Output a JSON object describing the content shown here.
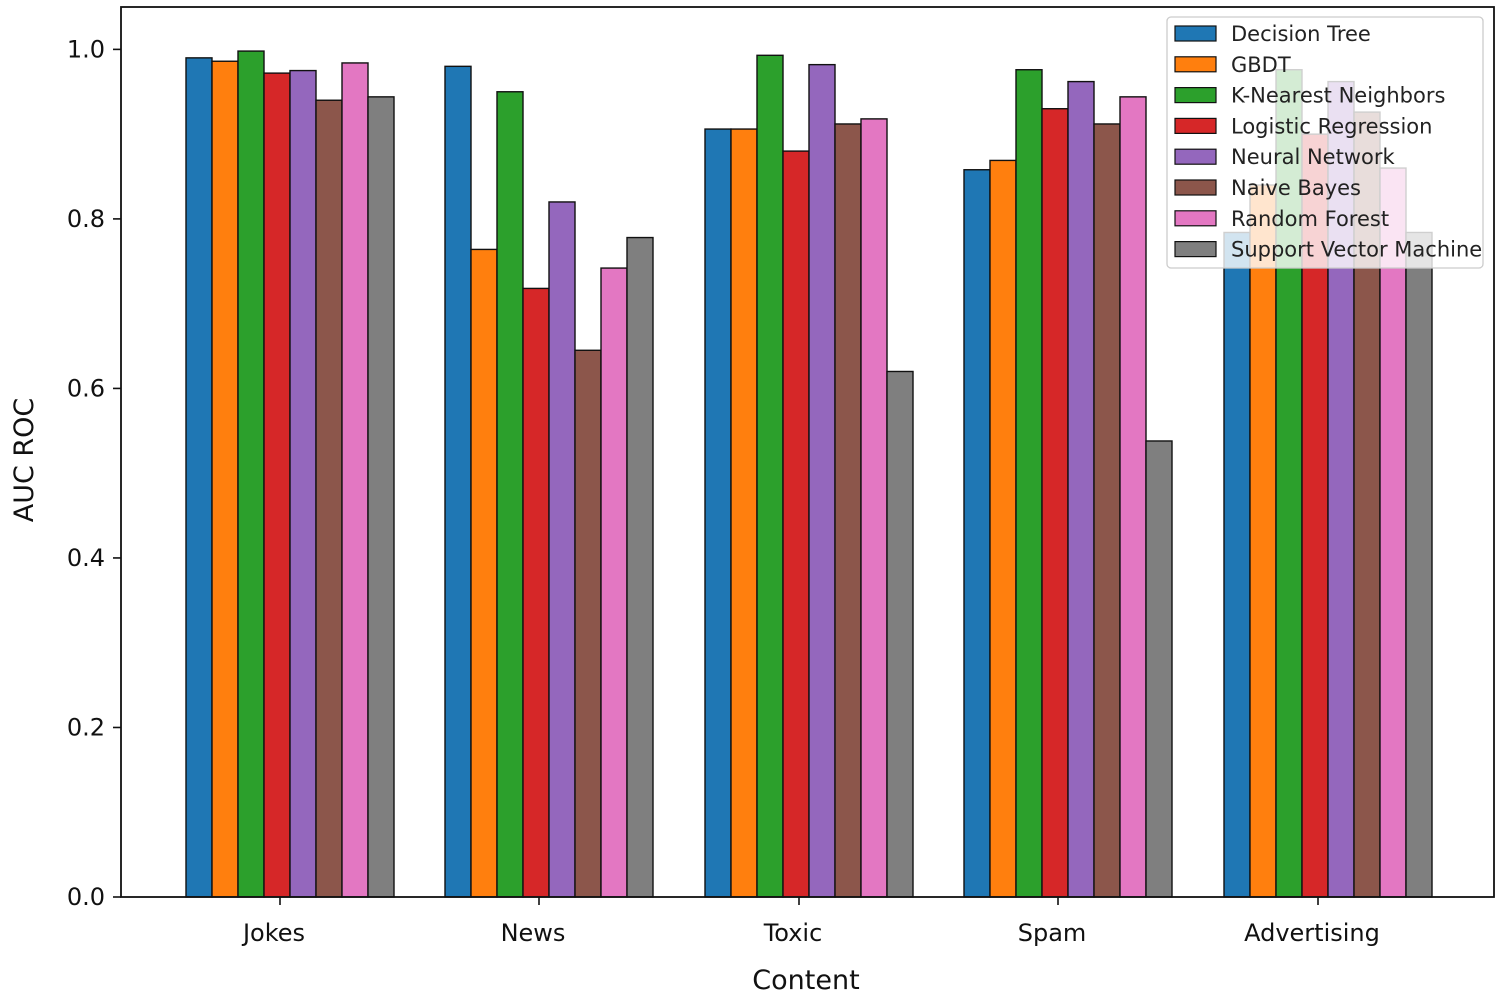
{
  "chart_data": {
    "type": "bar",
    "title": "",
    "xlabel": "Content",
    "ylabel": "AUC ROC",
    "ylim": [
      0,
      1.05
    ],
    "yticks": [
      "0.0",
      "0.2",
      "0.4",
      "0.6",
      "0.8",
      "1.0"
    ],
    "categories": [
      "Jokes",
      "News",
      "Toxic",
      "Spam",
      "Advertising"
    ],
    "legend_position": "top-right",
    "series": [
      {
        "name": "Decision Tree",
        "color": "#1f77b4",
        "values": [
          0.99,
          0.98,
          0.906,
          0.858,
          0.784
        ]
      },
      {
        "name": "GBDT",
        "color": "#ff7f0e",
        "values": [
          0.986,
          0.764,
          0.906,
          0.869,
          0.84
        ]
      },
      {
        "name": "K-Nearest Neighbors",
        "color": "#2ca02c",
        "values": [
          0.998,
          0.95,
          0.993,
          0.976,
          0.976
        ]
      },
      {
        "name": "Logistic Regression",
        "color": "#d62728",
        "values": [
          0.972,
          0.718,
          0.88,
          0.93,
          0.9
        ]
      },
      {
        "name": "Neural Network",
        "color": "#9467bd",
        "values": [
          0.975,
          0.82,
          0.982,
          0.962,
          0.962
        ]
      },
      {
        "name": "Naive Bayes",
        "color": "#8c564b",
        "values": [
          0.94,
          0.645,
          0.912,
          0.912,
          0.926
        ]
      },
      {
        "name": "Random Forest",
        "color": "#e377c2",
        "values": [
          0.984,
          0.742,
          0.918,
          0.944,
          0.86
        ]
      },
      {
        "name": "Support Vector Machine",
        "color": "#7f7f7f",
        "values": [
          0.944,
          0.778,
          0.62,
          0.538,
          0.784
        ]
      }
    ]
  }
}
